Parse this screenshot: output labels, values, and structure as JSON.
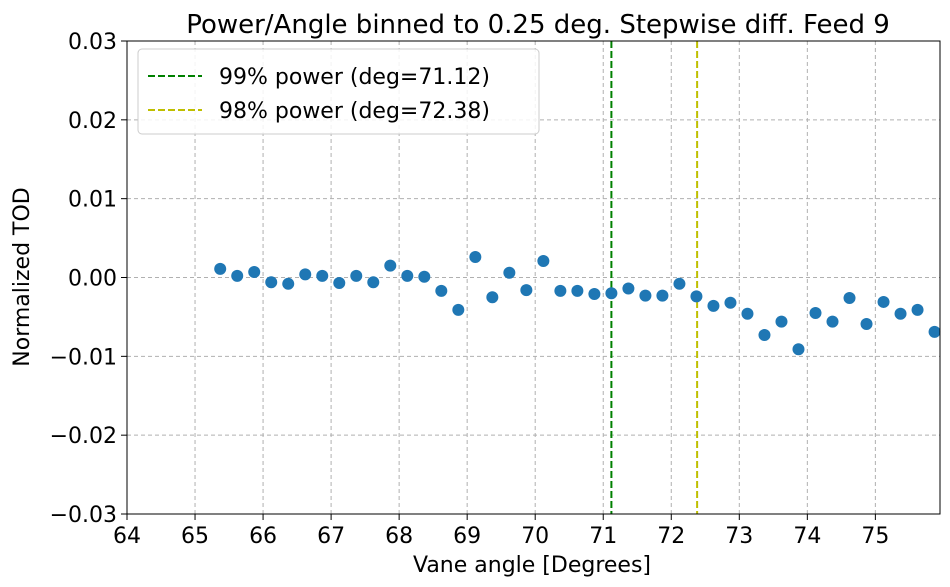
{
  "chart_data": {
    "type": "scatter",
    "title": "Power/Angle binned to 0.25 deg. Stepwise diff. Feed 9",
    "xlabel": "Vane angle [Degrees]",
    "ylabel": "Normalized TOD",
    "xlim": [
      64,
      75.95
    ],
    "ylim": [
      -0.03,
      0.03
    ],
    "xticks": [
      64,
      65,
      66,
      67,
      68,
      69,
      70,
      71,
      72,
      73,
      74,
      75
    ],
    "yticks": [
      -0.03,
      -0.02,
      -0.01,
      0.0,
      0.01,
      0.02,
      0.03
    ],
    "ytick_labels": [
      "−0.03",
      "−0.02",
      "−0.01",
      "0.00",
      "0.01",
      "0.02",
      "0.03"
    ],
    "grid": true,
    "legend_position": "top-left",
    "point_color": "#1f77b4",
    "series": [
      {
        "x": [
          65.37,
          65.62,
          65.87,
          66.12,
          66.37,
          66.62,
          66.87,
          67.12,
          67.37,
          67.62,
          67.87,
          68.12,
          68.37,
          68.62,
          68.87,
          69.12,
          69.37,
          69.62,
          69.87,
          70.12,
          70.37,
          70.62,
          70.87,
          71.12,
          71.37,
          71.62,
          71.87,
          72.12,
          72.37,
          72.62,
          72.87,
          73.12,
          73.37,
          73.62,
          73.87,
          74.12,
          74.37,
          74.62,
          74.87,
          75.12,
          75.37,
          75.62,
          75.87
        ],
        "y": [
          0.0011,
          0.0002,
          0.0007,
          -0.0006,
          -0.0008,
          0.0004,
          0.0002,
          -0.0007,
          0.0002,
          -0.0006,
          0.0015,
          0.0002,
          0.0001,
          -0.0017,
          -0.0041,
          0.0026,
          -0.0025,
          0.0006,
          -0.0016,
          0.0021,
          -0.0017,
          -0.0017,
          -0.0021,
          -0.002,
          -0.0014,
          -0.0023,
          -0.0023,
          -0.0008,
          -0.0024,
          -0.0036,
          -0.0032,
          -0.0046,
          -0.0073,
          -0.0056,
          -0.0091,
          -0.0045,
          -0.0056,
          -0.0026,
          -0.0059,
          -0.0031,
          -0.0046,
          -0.0041,
          -0.0069
        ]
      }
    ],
    "vlines": [
      {
        "x": 71.12,
        "label": "99% power (deg=71.12)",
        "color": "#008000"
      },
      {
        "x": 72.38,
        "label": "98% power (deg=72.38)",
        "color": "#bfbf00"
      }
    ]
  }
}
